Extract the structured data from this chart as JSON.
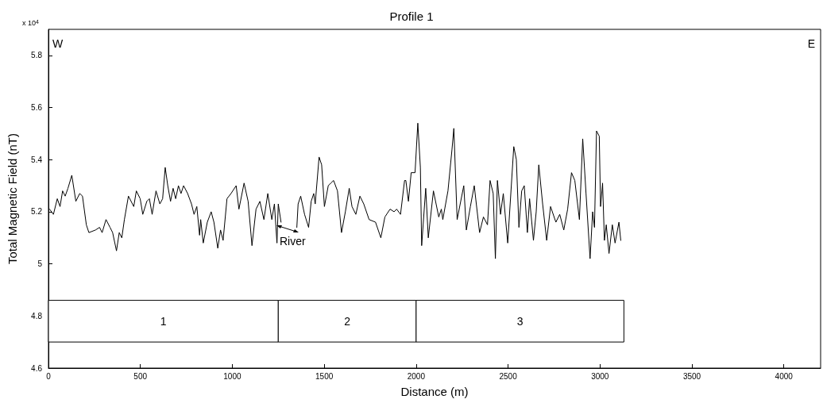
{
  "chart_data": {
    "type": "line",
    "title": "Profile 1",
    "xlabel": "Distance (m)",
    "ylabel": "Total Magnetic Field (nT)",
    "xlim": [
      0,
      4200
    ],
    "xticks": [
      0,
      500,
      1000,
      1500,
      2000,
      2500,
      3000,
      3500,
      4000
    ],
    "ylim": [
      4.6,
      5.9
    ],
    "yticks": [
      4.6,
      4.8,
      5,
      5.2,
      5.4,
      5.6,
      5.8
    ],
    "grid": false,
    "marker": "none",
    "line_style": "solid",
    "series": [
      {
        "color": "#000000",
        "x": [
          6,
          27,
          48,
          63,
          77,
          91,
          106,
          127,
          149,
          170,
          185,
          206,
          220,
          256,
          278,
          292,
          313,
          335,
          349,
          370,
          385,
          399,
          413,
          435,
          464,
          478,
          499,
          513,
          535,
          549,
          564,
          585,
          606,
          621,
          635,
          649,
          664,
          678,
          692,
          707,
          721,
          735,
          757,
          778,
          792,
          807,
          822,
          828,
          842,
          864,
          885,
          900,
          921,
          936,
          950,
          971,
          993,
          1021,
          1036,
          1064,
          1086,
          1107,
          1129,
          1150,
          1172,
          1193,
          1215,
          1229,
          1243,
          1250,
          1265,
          1300,
          1351,
          1358,
          1372,
          1393,
          1415,
          1429,
          1443,
          1451,
          1472,
          1486,
          1501,
          1522,
          1536,
          1551,
          1572,
          1594,
          1615,
          1636,
          1651,
          1672,
          1694,
          1715,
          1744,
          1779,
          1808,
          1830,
          1858,
          1880,
          1894,
          1915,
          1937,
          1944,
          1958,
          1973,
          1994,
          2009,
          2023,
          2030,
          2052,
          2066,
          2094,
          2123,
          2137,
          2145,
          2173,
          2195,
          2205,
          2223,
          2259,
          2273,
          2295,
          2316,
          2345,
          2366,
          2388,
          2402,
          2419,
          2431,
          2442,
          2459,
          2474,
          2498,
          2531,
          2545,
          2559,
          2574,
          2588,
          2605,
          2617,
          2638,
          2653,
          2667,
          2688,
          2710,
          2731,
          2760,
          2781,
          2803,
          2824,
          2845,
          2863,
          2888,
          2906,
          2924,
          2946,
          2960,
          2970,
          2981,
          2996,
          3003,
          3014,
          3024,
          3034,
          3049,
          3067,
          3082,
          3103,
          3113
        ],
        "values": [
          5.21,
          5.19,
          5.25,
          5.22,
          5.28,
          5.26,
          5.29,
          5.34,
          5.24,
          5.27,
          5.26,
          5.15,
          5.12,
          5.13,
          5.14,
          5.12,
          5.17,
          5.14,
          5.12,
          5.05,
          5.12,
          5.1,
          5.17,
          5.26,
          5.22,
          5.28,
          5.25,
          5.19,
          5.24,
          5.25,
          5.19,
          5.28,
          5.23,
          5.25,
          5.37,
          5.3,
          5.24,
          5.29,
          5.25,
          5.3,
          5.27,
          5.3,
          5.27,
          5.23,
          5.19,
          5.22,
          5.11,
          5.17,
          5.08,
          5.16,
          5.2,
          5.16,
          5.06,
          5.13,
          5.09,
          5.25,
          5.27,
          5.3,
          5.21,
          5.31,
          5.24,
          5.07,
          5.21,
          5.24,
          5.17,
          5.27,
          5.17,
          5.23,
          5.08,
          5.23,
          5.16,
          null,
          5.14,
          5.23,
          5.26,
          5.19,
          5.14,
          5.24,
          5.27,
          5.23,
          5.41,
          5.38,
          5.22,
          5.3,
          5.31,
          5.32,
          5.28,
          5.12,
          5.2,
          5.29,
          5.22,
          5.19,
          5.26,
          5.23,
          5.17,
          5.16,
          5.1,
          5.18,
          5.21,
          5.2,
          5.21,
          5.19,
          5.32,
          5.32,
          5.24,
          5.35,
          5.35,
          5.54,
          5.37,
          5.07,
          5.29,
          5.1,
          5.28,
          5.18,
          5.21,
          5.17,
          5.28,
          5.44,
          5.52,
          5.17,
          5.3,
          5.13,
          5.22,
          5.3,
          5.12,
          5.18,
          5.15,
          5.32,
          5.27,
          5.02,
          5.32,
          5.19,
          5.27,
          5.08,
          5.45,
          5.4,
          5.14,
          5.28,
          5.3,
          5.12,
          5.25,
          5.09,
          5.2,
          5.38,
          5.23,
          5.09,
          5.22,
          5.16,
          5.19,
          5.13,
          5.21,
          5.35,
          5.32,
          5.17,
          5.48,
          5.27,
          5.02,
          5.2,
          5.14,
          5.51,
          5.49,
          5.22,
          5.31,
          5.09,
          5.15,
          5.04,
          5.15,
          5.08,
          5.16,
          5.09
        ]
      }
    ],
    "bands": [
      {
        "axis": "x",
        "from": 0,
        "to": 1250,
        "label": "1"
      },
      {
        "axis": "x",
        "from": 1250,
        "to": 2000,
        "label": "2"
      },
      {
        "axis": "x",
        "from": 2000,
        "to": 3130,
        "label": "3"
      }
    ],
    "annotations": [
      "W",
      "E",
      "x 10$^{4}$",
      "River"
    ]
  }
}
